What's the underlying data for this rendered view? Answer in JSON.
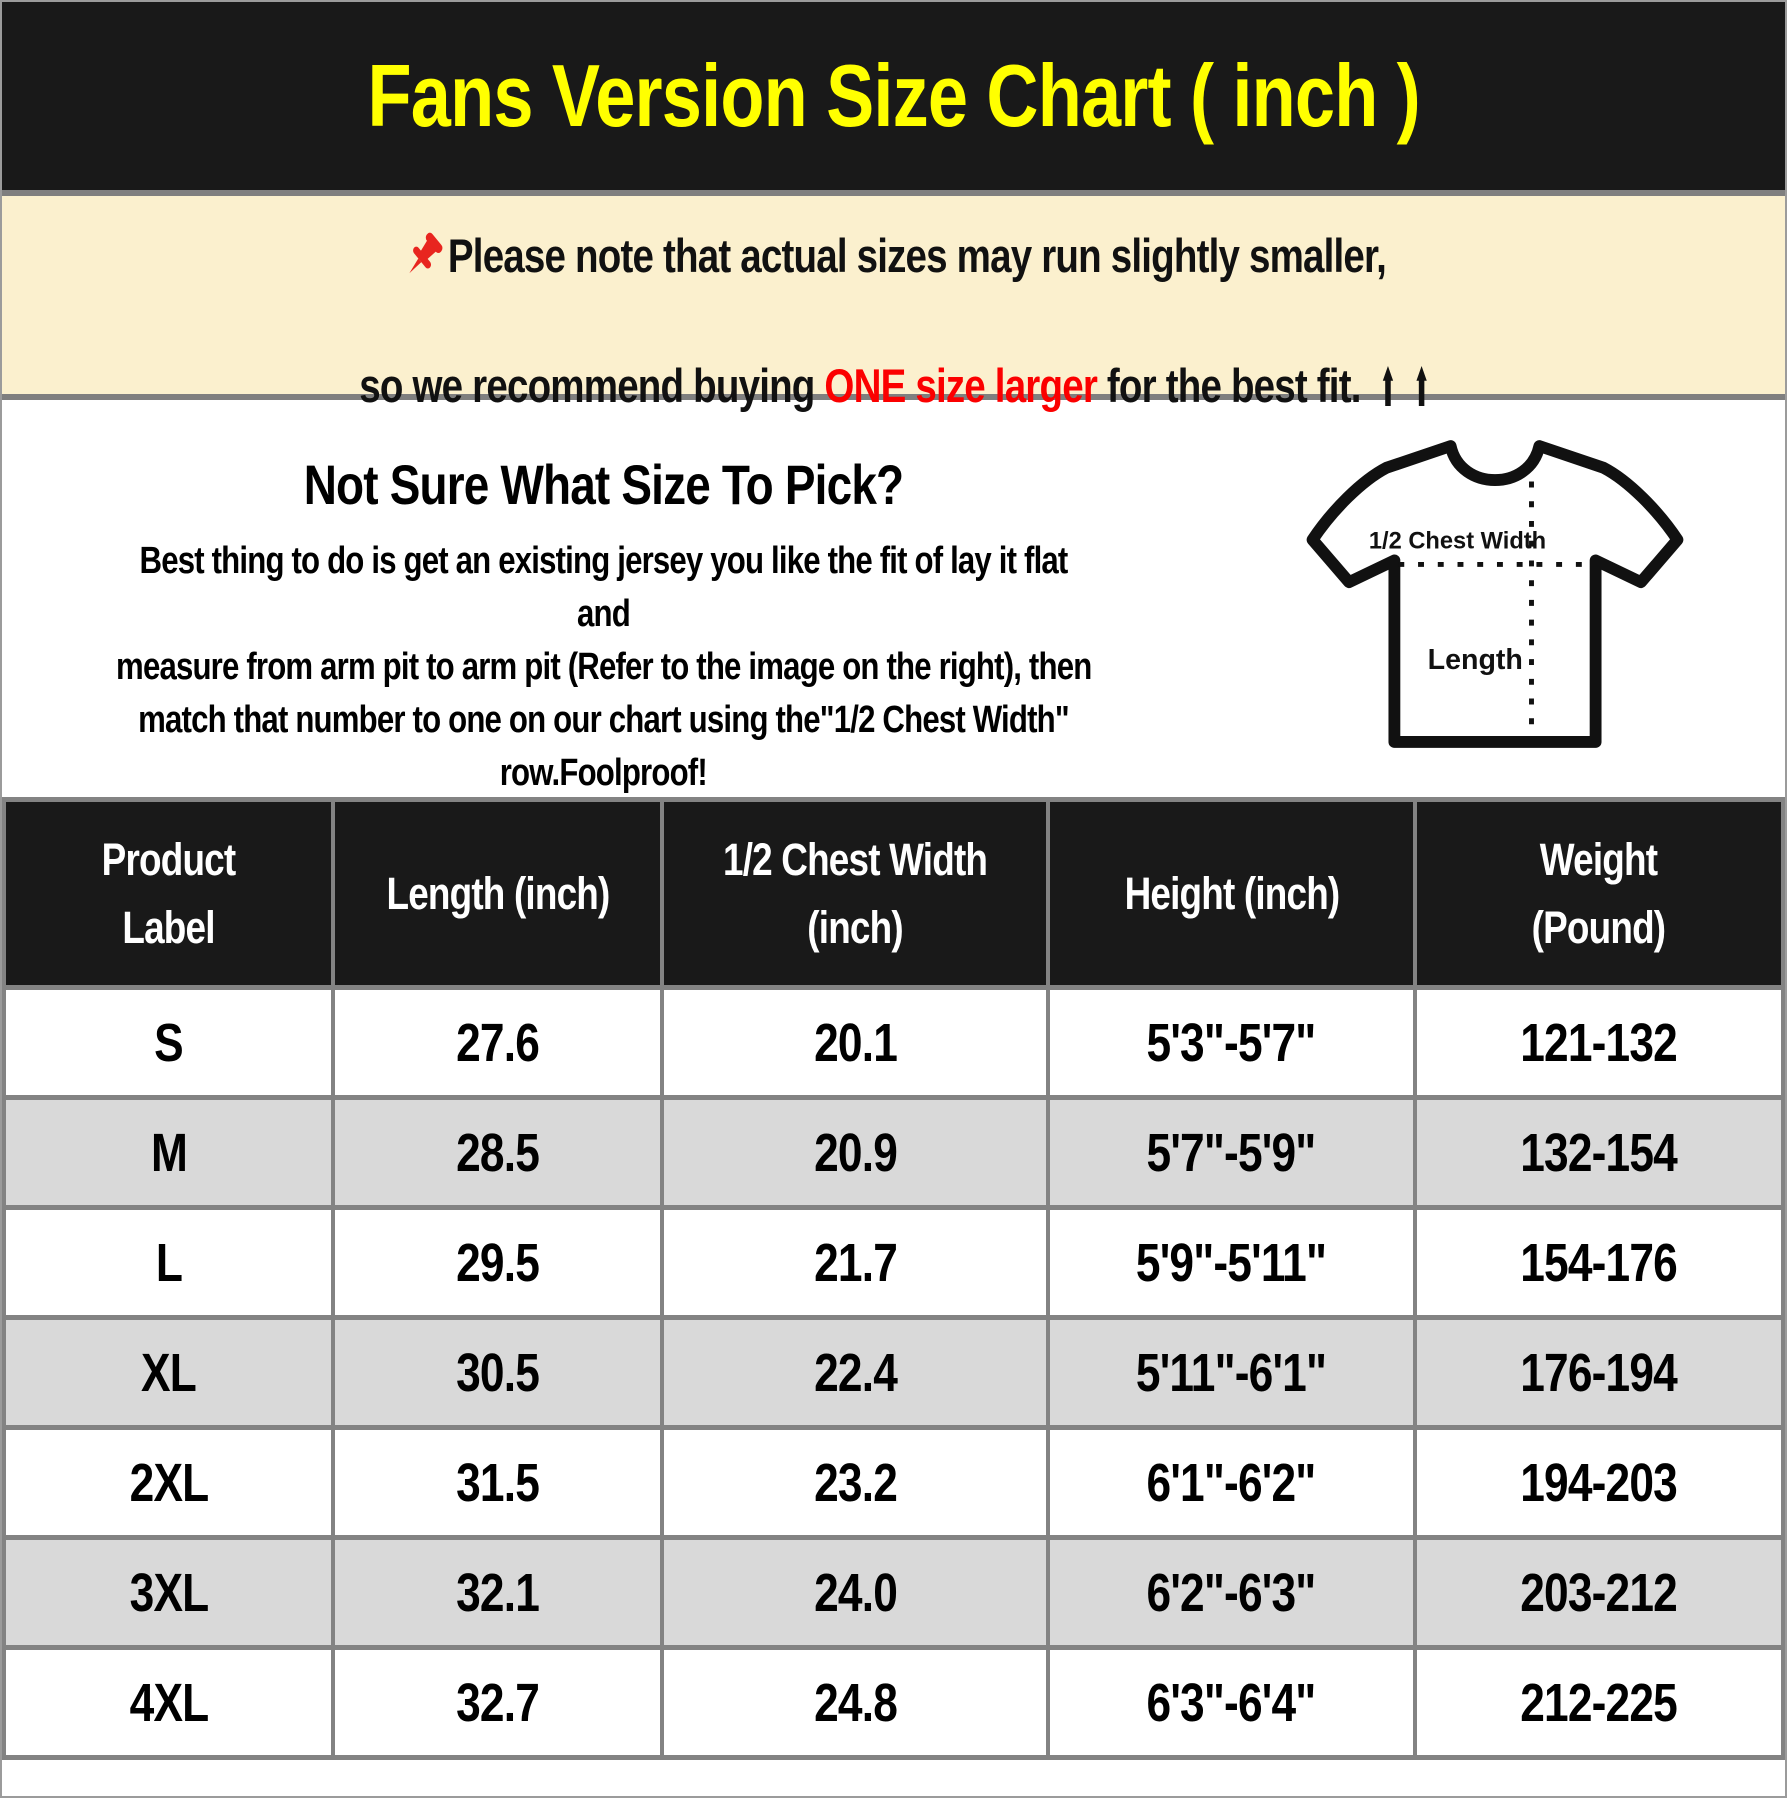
{
  "theme": {
    "ink": "#191919",
    "yellow": "#FFFF00",
    "cream": "#FBF0CE",
    "red": "#FB0000",
    "pin-red": "#E8251F",
    "row-alt": "#D9D9D9",
    "grid": "#838383",
    "edge": "#9B9B9B"
  },
  "banner": {
    "title": "Fans Version Size Chart ( inch )"
  },
  "note": {
    "pin_icon": "red-pushpin",
    "line1": "Please note that actual sizes may run slightly smaller,",
    "line2_before": "so we recommend buying ",
    "line2_highlight": "ONE size larger",
    "line2_after": " for the best fit.",
    "arrow_icon": "up-arrow"
  },
  "guide": {
    "heading": "Not Sure What Size To Pick?",
    "body_lines": [
      "Best thing to do is get an existing jersey you like the fit of lay it flat and",
      "measure from arm pit to arm pit (Refer to the image on the right), then",
      "match that number to one on our chart using the\"1/2 Chest Width\"",
      "row.Foolproof!"
    ],
    "diagram": {
      "chest_label": "1/2 Chest Width",
      "length_label": "Length"
    }
  },
  "table": {
    "headers": [
      "Product\nLabel",
      "Length (inch)",
      "1/2 Chest Width\n(inch)",
      "Height (inch)",
      "Weight\n(Pound)"
    ],
    "col_keys": [
      "product-label",
      "length-inch",
      "half-chest-width-inch",
      "height-inch",
      "weight-pound"
    ],
    "rows": [
      [
        "S",
        "27.6",
        "20.1",
        "5'3\"-5'7\"",
        "121-132"
      ],
      [
        "M",
        "28.5",
        "20.9",
        "5'7\"-5'9\"",
        "132-154"
      ],
      [
        "L",
        "29.5",
        "21.7",
        "5'9\"-5'11\"",
        "154-176"
      ],
      [
        "XL",
        "30.5",
        "22.4",
        "5'11\"-6'1\"",
        "176-194"
      ],
      [
        "2XL",
        "31.5",
        "23.2",
        "6'1\"-6'2\"",
        "194-203"
      ],
      [
        "3XL",
        "32.1",
        "24.0",
        "6'2\"-6'3\"",
        "203-212"
      ],
      [
        "4XL",
        "32.7",
        "24.8",
        "6'3\"-6'4\"",
        "212-225"
      ]
    ]
  },
  "chart_data": {
    "type": "table",
    "title": "Fans Version Size Chart ( inch )",
    "columns": [
      "Product Label",
      "Length (inch)",
      "1/2 Chest Width (inch)",
      "Height (inch)",
      "Weight (Pound)"
    ],
    "rows": [
      [
        "S",
        27.6,
        20.1,
        "5'3\"-5'7\"",
        "121-132"
      ],
      [
        "M",
        28.5,
        20.9,
        "5'7\"-5'9\"",
        "132-154"
      ],
      [
        "L",
        29.5,
        21.7,
        "5'9\"-5'11\"",
        "154-176"
      ],
      [
        "XL",
        30.5,
        22.4,
        "5'11\"-6'1\"",
        "176-194"
      ],
      [
        "2XL",
        31.5,
        23.2,
        "6'1\"-6'2\"",
        "194-203"
      ],
      [
        "3XL",
        32.1,
        24.0,
        "6'2\"-6'3\"",
        "203-212"
      ],
      [
        "4XL",
        32.7,
        24.8,
        "6'3\"-6'4\"",
        "212-225"
      ]
    ]
  }
}
